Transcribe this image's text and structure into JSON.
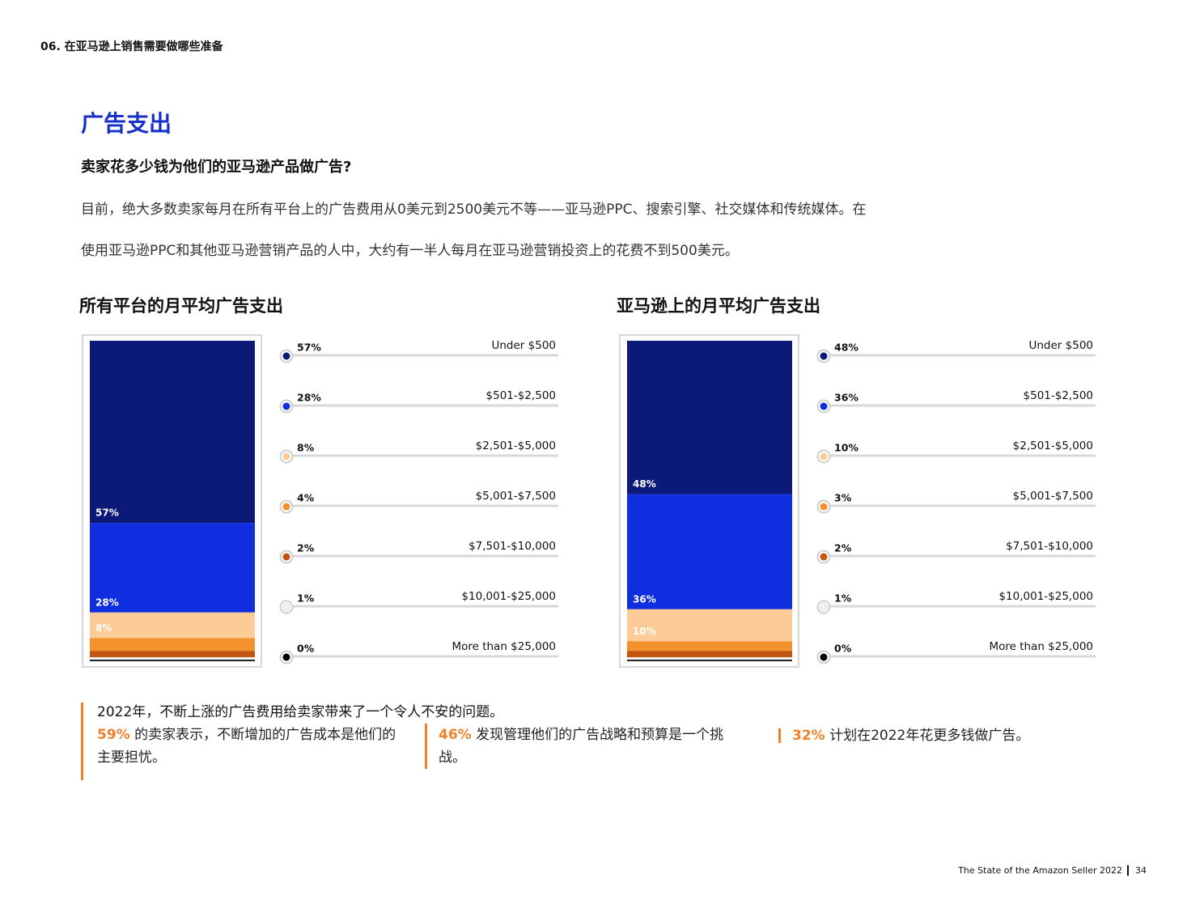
{
  "header": "06. 在亚马逊上销售需要做哪些准备",
  "title": "广告支出",
  "question": "卖家花多少钱为他们的亚马逊产品做广告?",
  "paragraph": [
    "目前，绝大多数卖家每月在所有平台上的广告费用从0美元到2500美元不等——亚马逊PPC、搜索引擎、社交媒体和传统媒体。在",
    "使用亚马逊PPC和其他亚马逊营销产品的人中，大约有一半人每月在亚马逊营销投资上的花费不到500美元。"
  ],
  "chart_data": [
    {
      "type": "stacked_column",
      "title": "所有平台的月平均广告支出",
      "categories": [
        "Under $500",
        "$501-$2,500",
        "$2,501-$5,000",
        "$5,001-$7,500",
        "$7,501-$10,000",
        "$10,001-$25,000",
        "More than $25,000"
      ],
      "values": [
        57,
        28,
        8,
        4,
        2,
        1,
        0
      ],
      "value_labels": [
        "57%",
        "28%",
        "8%",
        "4%",
        "2%",
        "1%",
        "0%"
      ],
      "colors": [
        "#0b1a78",
        "#0f2ee0",
        "#fccb96",
        "#f4922d",
        "#c2560f",
        "#f1f1f1",
        "#000000"
      ]
    },
    {
      "type": "stacked_column",
      "title": "亚马逊上的月平均广告支出",
      "categories": [
        "Under $500",
        "$501-$2,500",
        "$2,501-$5,000",
        "$5,001-$7,500",
        "$7,501-$10,000",
        "$10,001-$25,000",
        "More than $25,000"
      ],
      "values": [
        48,
        36,
        10,
        3,
        2,
        1,
        0
      ],
      "value_labels": [
        "48%",
        "36%",
        "10%",
        "3%",
        "2%",
        "1%",
        "0%"
      ],
      "colors": [
        "#0b1a78",
        "#0f2ee0",
        "#fccb96",
        "#f4922d",
        "#c2560f",
        "#f1f1f1",
        "#000000"
      ]
    }
  ],
  "callout": {
    "intro": "2022年，不断上涨的广告费用给卖家带来了一个令人不安的问题。",
    "items": [
      {
        "highlight": "59%",
        "text": " 的卖家表示，不断增加的广告成本是他们的主要担忧。"
      },
      {
        "highlight": "46%",
        "text": " 发现管理他们的广告战略和预算是一个挑战。"
      },
      {
        "highlight": "32%",
        "text": " 计划在2022年花更多钱做广告。"
      }
    ]
  },
  "footer": {
    "report": "The State of the Amazon Seller 2022",
    "page": "34"
  }
}
